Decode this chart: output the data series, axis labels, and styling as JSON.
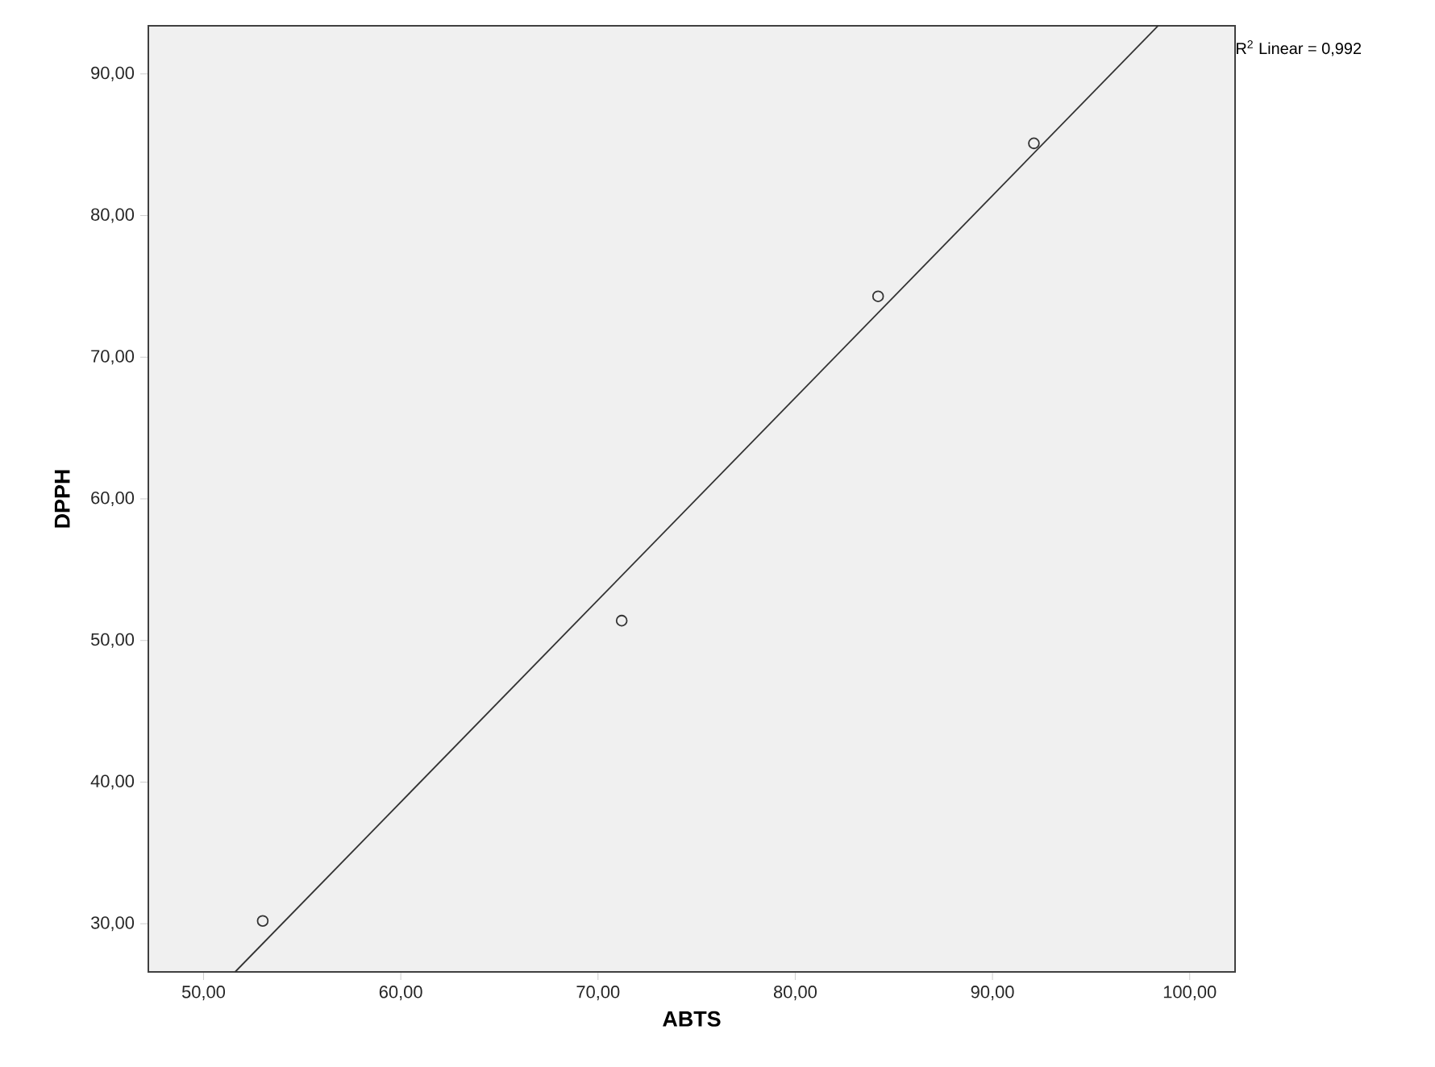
{
  "chart_data": {
    "type": "scatter",
    "xlabel": "ABTS",
    "ylabel": "DPPH",
    "xlim": [
      47.2,
      102.3
    ],
    "ylim": [
      26.6,
      93.4
    ],
    "xticks": [
      {
        "value": 50,
        "label": "50,00"
      },
      {
        "value": 60,
        "label": "60,00"
      },
      {
        "value": 70,
        "label": "70,00"
      },
      {
        "value": 80,
        "label": "80,00"
      },
      {
        "value": 90,
        "label": "90,00"
      },
      {
        "value": 100,
        "label": "100,00"
      }
    ],
    "yticks": [
      {
        "value": 30,
        "label": "30,00"
      },
      {
        "value": 40,
        "label": "40,00"
      },
      {
        "value": 50,
        "label": "50,00"
      },
      {
        "value": 60,
        "label": "60,00"
      },
      {
        "value": 70,
        "label": "70,00"
      },
      {
        "value": 80,
        "label": "80,00"
      },
      {
        "value": 90,
        "label": "90,00"
      }
    ],
    "series": [
      {
        "color": "#333333",
        "marker": "circle",
        "x": [
          53.0,
          71.2,
          84.2,
          92.1
        ],
        "values": [
          30.2,
          51.4,
          74.3,
          85.1
        ]
      },
      {
        "type": "line",
        "marker": "none",
        "color": "#333333",
        "x": [
          51.6,
          98.4
        ],
        "values": [
          26.6,
          93.4
        ]
      }
    ],
    "grid": false,
    "annotations": [
      "R$^{2}$ Linear = 0,992"
    ]
  }
}
